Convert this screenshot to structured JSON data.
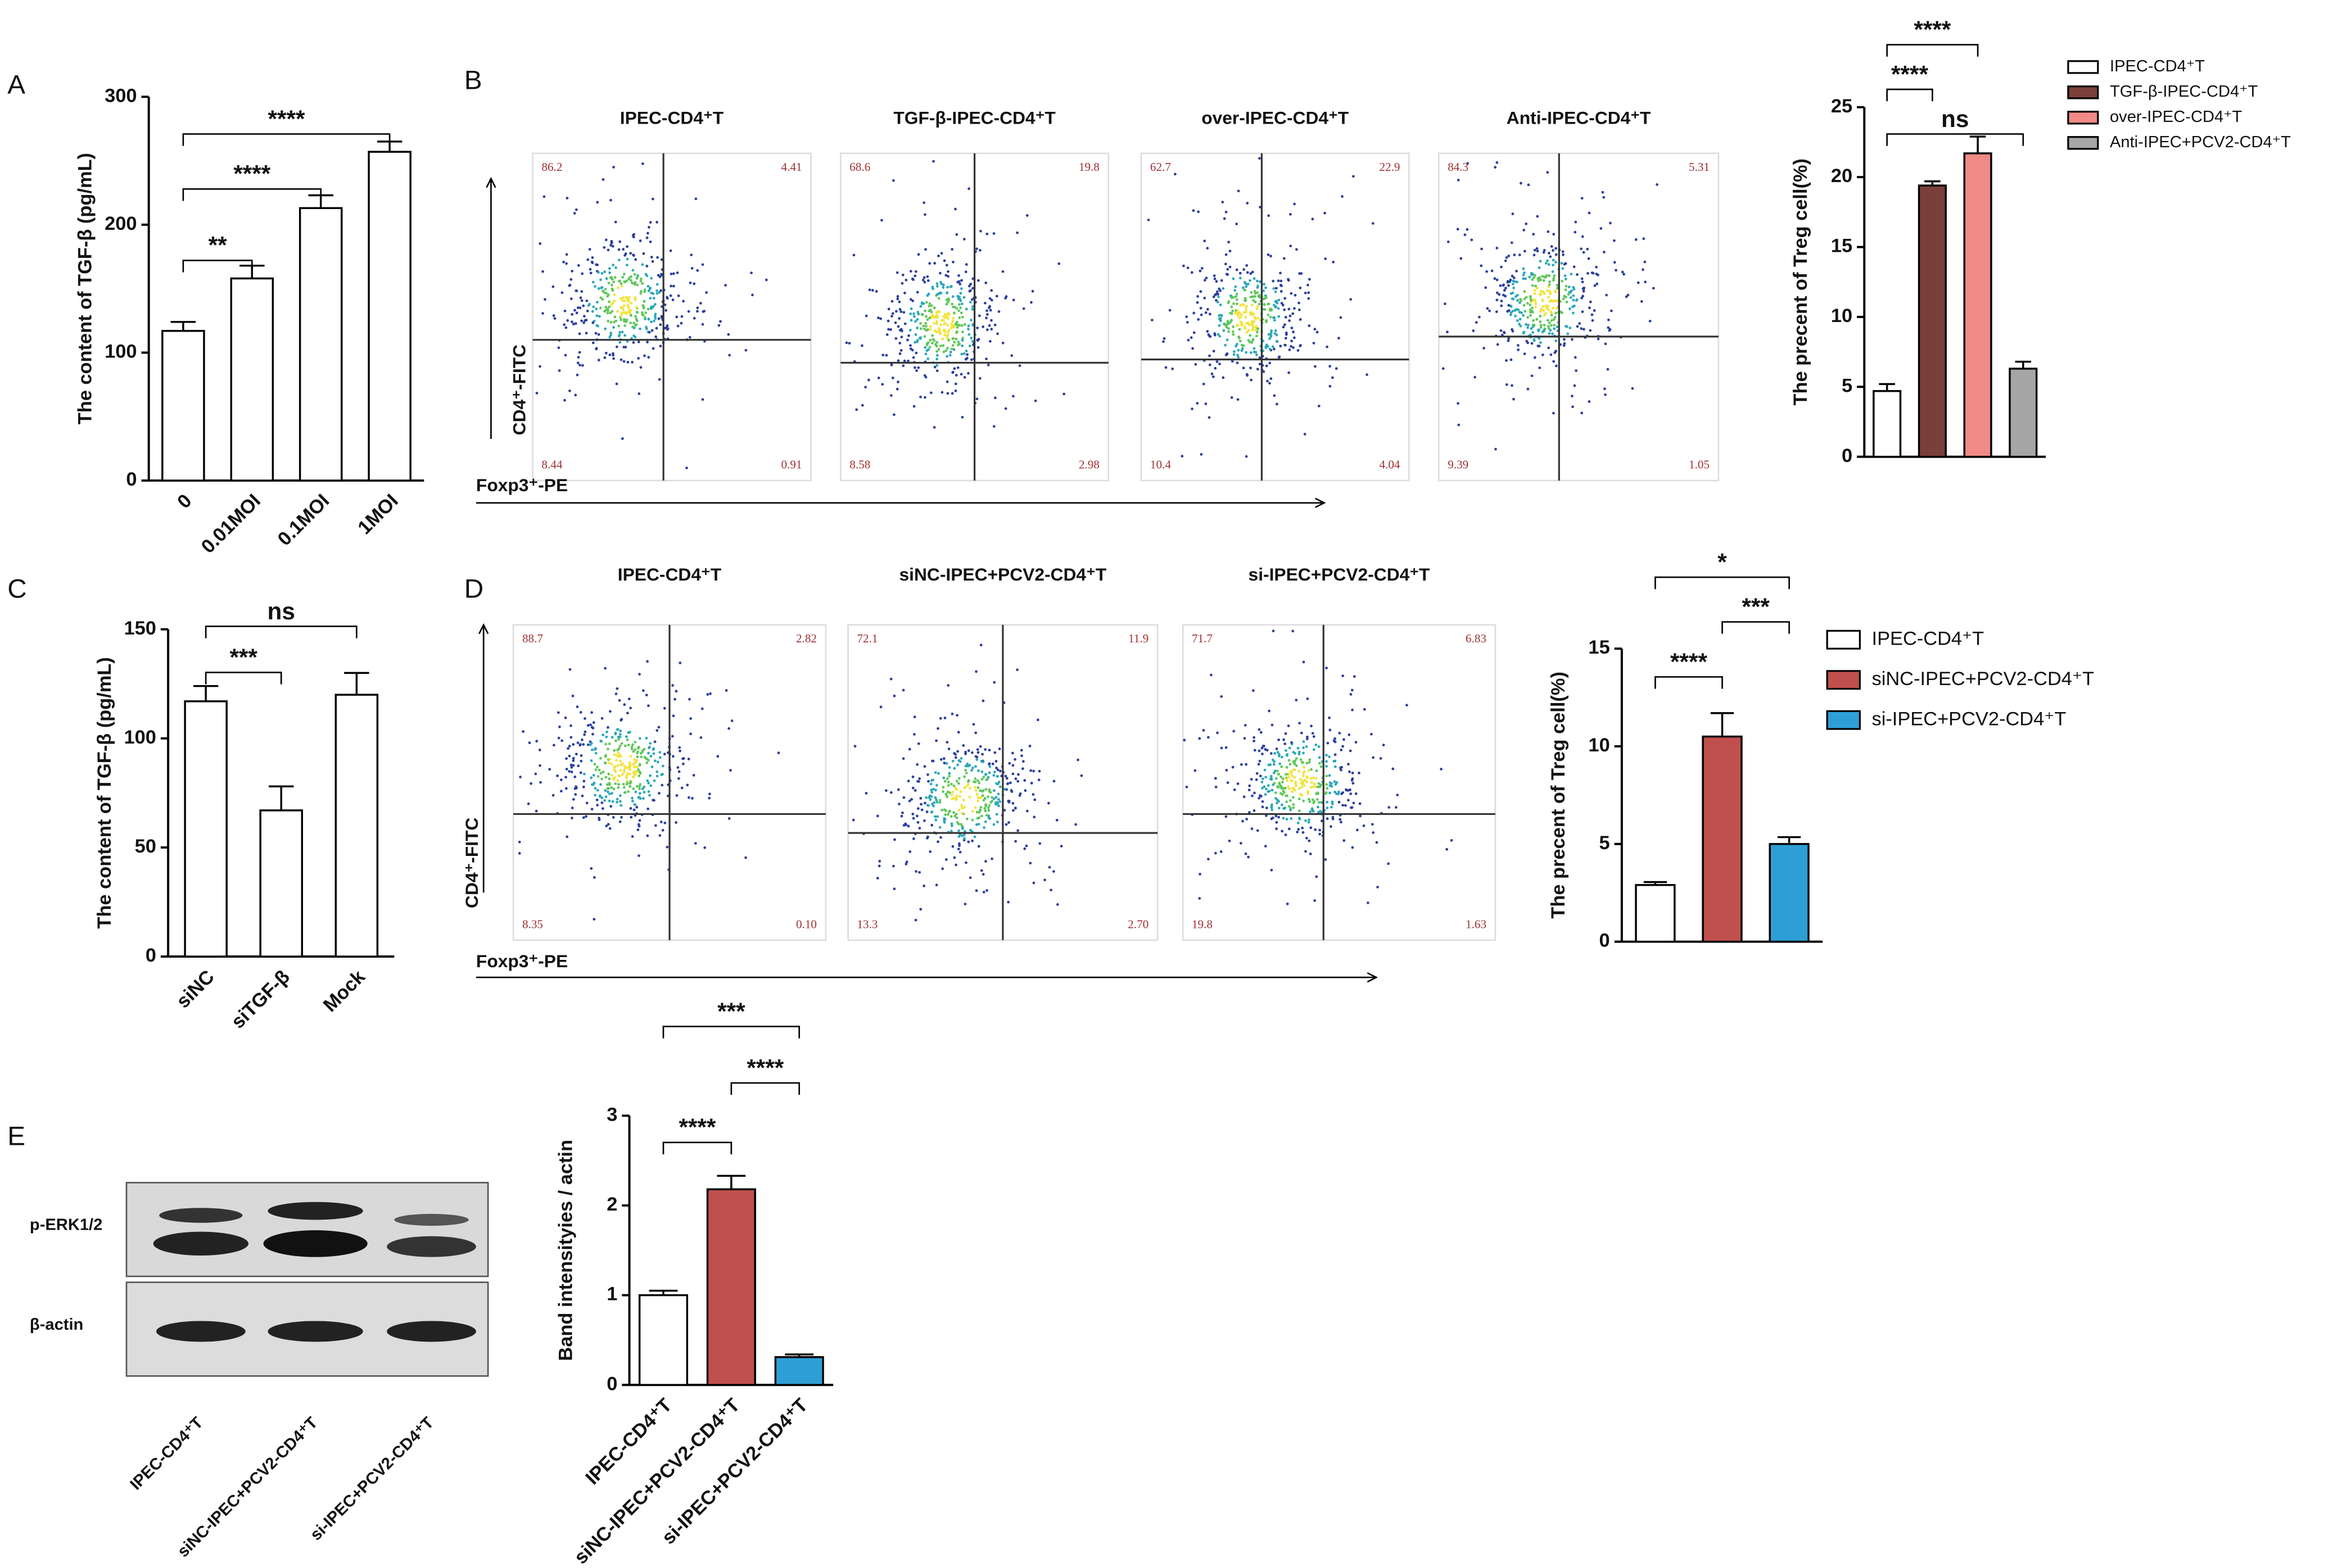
{
  "panel_labels": [
    "A",
    "B",
    "C",
    "D",
    "E"
  ],
  "chart_data": [
    {
      "type": "bar",
      "ylabel": "The content of TGF-β (pg/mL)",
      "categories": [
        "0",
        "0.01MOI",
        "0.1MOI",
        "1MOI"
      ],
      "values": [
        117,
        158,
        213,
        257
      ],
      "errors": [
        7,
        10,
        10,
        8
      ],
      "colors": [
        "#ffffff",
        "#ffffff",
        "#ffffff",
        "#ffffff"
      ],
      "ylim": [
        0,
        300
      ],
      "yticks": [
        0,
        100,
        200,
        300
      ],
      "annotations": [
        "**",
        "****",
        "****"
      ]
    },
    {
      "type": "bar",
      "ylabel": "The precent of Treg cell(%)",
      "categories": [
        "IPEC-CD4⁺T",
        "TGF-β-IPEC-CD4⁺T",
        "over-IPEC-CD4⁺T",
        "Anti-IPEC+PCV2-CD4⁺T"
      ],
      "values": [
        4.7,
        19.4,
        21.7,
        6.3
      ],
      "errors": [
        0.5,
        0.3,
        1.2,
        0.5
      ],
      "colors": [
        "#ffffff",
        "#7b3f3a",
        "#f08a86",
        "#a6a6a6"
      ],
      "ylim": [
        0,
        25
      ],
      "yticks": [
        0,
        5,
        10,
        15,
        20,
        25
      ],
      "legend": "right",
      "annotations": [
        "****",
        "****",
        "ns"
      ]
    },
    {
      "type": "bar",
      "ylabel": "The content of TGF-β (pg/mL)",
      "categories": [
        "siNC",
        "siTGF-β",
        "Mock"
      ],
      "values": [
        117,
        67,
        120
      ],
      "errors": [
        7,
        11,
        10
      ],
      "colors": [
        "#ffffff",
        "#ffffff",
        "#ffffff"
      ],
      "ylim": [
        0,
        150
      ],
      "yticks": [
        0,
        50,
        100,
        150
      ],
      "annotations": [
        "***",
        "ns"
      ]
    },
    {
      "type": "bar",
      "ylabel": "The precent of Treg cell(%)",
      "categories": [
        "IPEC-CD4⁺T",
        "siNC-IPEC+PCV2-CD4⁺T",
        "si-IPEC+PCV2-CD4⁺T"
      ],
      "values": [
        2.9,
        10.5,
        5.0
      ],
      "errors": [
        0.15,
        1.2,
        0.35
      ],
      "colors": [
        "#ffffff",
        "#c0504d",
        "#2e9fd6"
      ],
      "ylim": [
        0,
        15
      ],
      "yticks": [
        0,
        5,
        10,
        15
      ],
      "legend": "right",
      "annotations": [
        "****",
        "***",
        "*"
      ]
    },
    {
      "type": "bar",
      "ylabel": "Band intensityies / actin",
      "categories": [
        "IPEC-CD4⁺T",
        "siNC-IPEC+PCV2-CD4⁺T",
        "si-IPEC+PCV2-CD4⁺T"
      ],
      "values": [
        1.0,
        2.18,
        0.31
      ],
      "errors": [
        0.05,
        0.15,
        0.03
      ],
      "colors": [
        "#ffffff",
        "#c0504d",
        "#2e9fd6"
      ],
      "ylim": [
        0,
        3
      ],
      "yticks": [
        0,
        1,
        2,
        3
      ],
      "annotations": [
        "****",
        "****",
        "***"
      ]
    }
  ],
  "flow_panels": [
    {
      "ylabel": "CD4⁺-FITC",
      "xlabel": "Foxp3⁺-PE",
      "titles": [
        "IPEC-CD4⁺T",
        "TGF-β-IPEC-CD4⁺T",
        "over-IPEC-CD4⁺T",
        "Anti-IPEC-CD4⁺T"
      ],
      "quadrants": [
        [
          "86.2",
          "4.41",
          "8.44",
          "0.91"
        ],
        [
          "68.6",
          "19.8",
          "8.58",
          "2.98"
        ],
        [
          "62.7",
          "22.9",
          "10.4",
          "4.04"
        ],
        [
          "84.3",
          "5.31",
          "9.39",
          "1.05"
        ]
      ]
    },
    {
      "ylabel": "CD4⁺-FITC",
      "xlabel": "Foxp3⁺-PE",
      "titles": [
        "IPEC-CD4⁺T",
        "siNC-IPEC+PCV2-CD4⁺T",
        "si-IPEC+PCV2-CD4⁺T"
      ],
      "quadrants": [
        [
          "88.7",
          "2.82",
          "8.35",
          "0.10"
        ],
        [
          "72.1",
          "11.9",
          "13.3",
          "2.70"
        ],
        [
          "71.7",
          "6.83",
          "19.8",
          "1.63"
        ]
      ]
    }
  ],
  "western_blot": {
    "rows": [
      "p-ERK1/2",
      "β-actin"
    ],
    "lanes": [
      "IPEC-CD4⁺T",
      "siNC-IPEC+PCV2-CD4⁺T",
      "si-IPEC+PCV2-CD4⁺T"
    ]
  }
}
